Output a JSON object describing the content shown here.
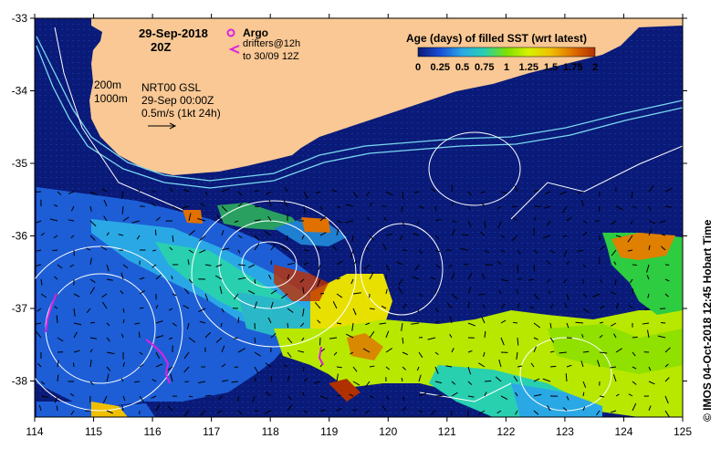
{
  "title": {
    "date": "29-Sep-2018",
    "time": "20Z"
  },
  "argo": {
    "label": "Argo",
    "drifters_line1": "drifters@12h",
    "drifters_line2": "to 30/09 12Z"
  },
  "isobaths": {
    "shallow": "200m",
    "deep": "1000m"
  },
  "product": {
    "line1": "NRT00 GSL",
    "line2": "29-Sep 00:00Z",
    "line3": "0.5m/s (1kt 24h)"
  },
  "legend": {
    "title": "Age (days) of filled SST (wrt latest)",
    "ticks": [
      "0",
      "0.25",
      "0.5",
      "0.75",
      "1",
      "1.25",
      "1.5",
      "1.75",
      "2"
    ],
    "colors": [
      "#0a1a78",
      "#1a4fd6",
      "#2aa8e6",
      "#28d0b0",
      "#7fe000",
      "#d8f000",
      "#f0c000",
      "#e07000",
      "#b03000"
    ]
  },
  "axes": {
    "x_ticks": [
      "114",
      "115",
      "116",
      "117",
      "118",
      "119",
      "120",
      "121",
      "122",
      "123",
      "124",
      "125"
    ],
    "y_ticks": [
      "-33",
      "-34",
      "-35",
      "-36",
      "-37",
      "-38"
    ]
  },
  "credit": "© IMOS 04-Oct-2018 12:45 Hobart Time",
  "colors": {
    "ocean_deep": "#0a1a78",
    "land": "#f9c894",
    "argo": "#e020e0",
    "isobath": "#7ad8ef",
    "contour": "#ffffff"
  }
}
